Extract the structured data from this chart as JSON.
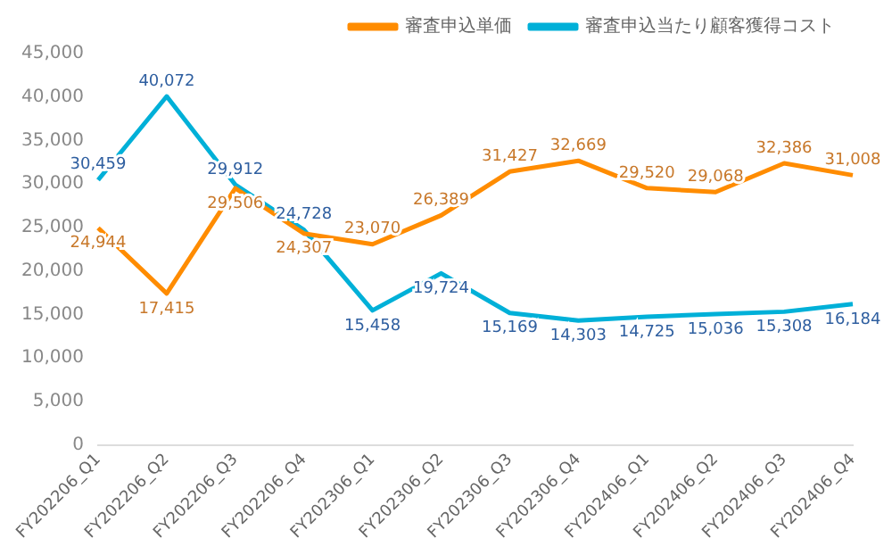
{
  "chart_data": {
    "type": "line",
    "categories": [
      "FY202206_Q1",
      "FY202206_Q2",
      "FY202206_Q3",
      "FY202206_Q4",
      "FY202306_Q1",
      "FY202306_Q2",
      "FY202306_Q3",
      "FY202306_Q4",
      "FY202406_Q1",
      "FY202406_Q2",
      "FY202406_Q3",
      "FY202406_Q4"
    ],
    "series": [
      {
        "name": "審査申込単価",
        "color": "#ff8c00",
        "values": [
          24944,
          17415,
          29506,
          24307,
          23070,
          26389,
          31427,
          32669,
          29520,
          29068,
          32386,
          31008
        ],
        "value_labels": [
          "24,944",
          "17,415",
          "29,506",
          "24,307",
          "23,070",
          "26,389",
          "31,427",
          "32,669",
          "29,520",
          "29,068",
          "32,386",
          "31,008"
        ]
      },
      {
        "name": "審査申込当たり顧客獲得コスト",
        "color": "#00b0d8",
        "values": [
          30459,
          40072,
          29912,
          24728,
          15458,
          19724,
          15169,
          14303,
          14725,
          15036,
          15308,
          16184
        ],
        "value_labels": [
          "30,459",
          "40,072",
          "29,912",
          "24,728",
          "15,458",
          "19,724",
          "15,169",
          "14,303",
          "14,725",
          "15,036",
          "15,308",
          "16,184"
        ]
      }
    ],
    "ylim": [
      0,
      45000
    ],
    "yticks": [
      {
        "value": 0,
        "label": "0"
      },
      {
        "value": 5000,
        "label": "5,000"
      },
      {
        "value": 10000,
        "label": "10,000"
      },
      {
        "value": 15000,
        "label": "15,000"
      },
      {
        "value": 20000,
        "label": "20,000"
      },
      {
        "value": 25000,
        "label": "25,000"
      },
      {
        "value": 30000,
        "label": "30,000"
      },
      {
        "value": 35000,
        "label": "35,000"
      },
      {
        "value": 40000,
        "label": "40,000"
      },
      {
        "value": 45000,
        "label": "45,000"
      }
    ],
    "grid": false,
    "legend": "top",
    "marker": "none",
    "line_style": "solid"
  }
}
